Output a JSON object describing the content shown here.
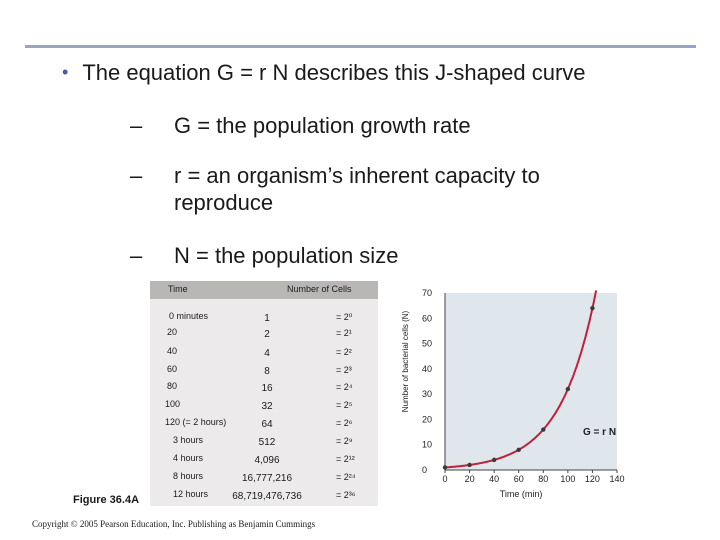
{
  "slide": {
    "bullet": "The equation G = r N describes this J-shaped curve",
    "subs": [
      {
        "dash": "–",
        "text": "G = the population growth rate"
      },
      {
        "dash": "–",
        "text": "r = an organism’s inherent capacity to reproduce"
      },
      {
        "dash": "–",
        "text": "N = the population size"
      }
    ],
    "figure_label": "Figure 36.4A",
    "copyright": "Copyright © 2005 Pearson Education, Inc. Publishing as Benjamin Cummings"
  },
  "table": {
    "headers": [
      "Time",
      "Number of Cells"
    ],
    "rows": [
      {
        "time": "0 minutes",
        "cells": "1",
        "power": "= 2⁰"
      },
      {
        "time": "20",
        "cells": "2",
        "power": "= 2¹"
      },
      {
        "time": "40",
        "cells": "4",
        "power": "= 2²"
      },
      {
        "time": "60",
        "cells": "8",
        "power": "= 2³"
      },
      {
        "time": "80",
        "cells": "16",
        "power": "= 2⁴"
      },
      {
        "time": "100",
        "cells": "32",
        "power": "= 2⁵"
      },
      {
        "time": "120 (= 2 hours)",
        "cells": "64",
        "power": "= 2⁶"
      },
      {
        "time": "3 hours",
        "cells": "512",
        "power": "= 2⁹"
      },
      {
        "time": "4 hours",
        "cells": "4,096",
        "power": "= 2¹²"
      },
      {
        "time": "8 hours",
        "cells": "16,777,216",
        "power": "= 2²⁴"
      },
      {
        "time": "12 hours",
        "cells": "68,719,476,736",
        "power": "= 2³⁶"
      }
    ]
  },
  "chart_data": {
    "type": "line",
    "xlabel": "Time (min)",
    "ylabel": "Number of bacterial cells (N)",
    "xlim": [
      0,
      140
    ],
    "ylim": [
      0,
      70
    ],
    "xticks": [
      "0",
      "20",
      "40",
      "60",
      "80",
      "100",
      "120",
      "140"
    ],
    "yticks": [
      "0",
      "10",
      "20",
      "30",
      "40",
      "50",
      "60",
      "70"
    ],
    "points": [
      {
        "x": 0,
        "y": 1
      },
      {
        "x": 20,
        "y": 2
      },
      {
        "x": 40,
        "y": 4
      },
      {
        "x": 60,
        "y": 8
      },
      {
        "x": 80,
        "y": 16
      },
      {
        "x": 100,
        "y": 32
      },
      {
        "x": 120,
        "y": 64
      }
    ],
    "annotation": "G = r N",
    "colors": {
      "line": "#c0203a",
      "point": "#3a3a3a",
      "plot_bg": "#dfe6ec"
    }
  }
}
